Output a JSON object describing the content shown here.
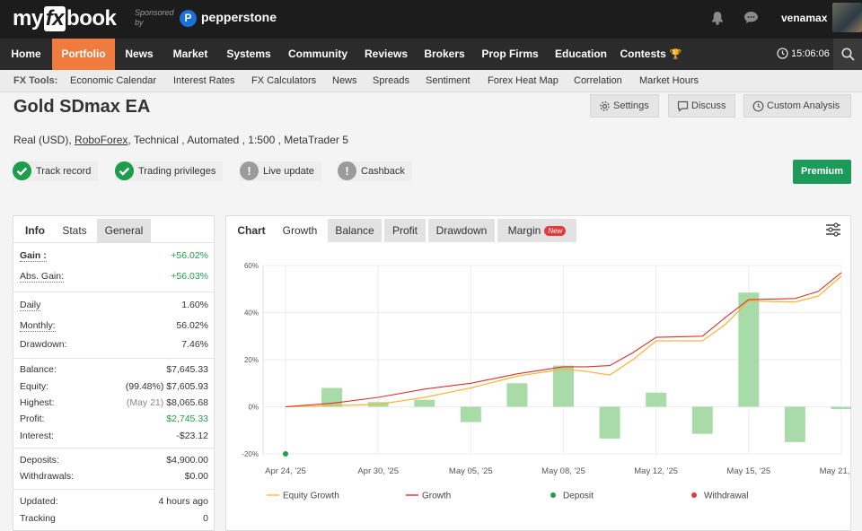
{
  "header": {
    "logo_text": {
      "pre": "my",
      "fx": "fx",
      "post": "book"
    },
    "sponsored_text": "Sponsored by",
    "sponsor_logo_letter": "P",
    "sponsor_name": "pepperstone",
    "username": "venamax"
  },
  "nav": {
    "items": [
      "Home",
      "Portfolio",
      "News",
      "Market",
      "Systems",
      "Community",
      "Reviews",
      "Brokers",
      "Prop Firms",
      "Education",
      "Contests"
    ],
    "active": "Portfolio",
    "time": "15:06:06"
  },
  "tools": {
    "label": "FX Tools:",
    "items": [
      "Economic Calendar",
      "Interest Rates",
      "FX Calculators",
      "News",
      "Spreads",
      "Sentiment",
      "Forex Heat Map",
      "Correlation",
      "Market Hours"
    ]
  },
  "page": {
    "title": "Gold SDmax EA",
    "settings_label": "Settings",
    "discuss_label": "Discuss",
    "custom_analysis_label": "Custom Analysis",
    "subtitle_prefix": "Real (USD),",
    "broker_link": "RoboForex",
    "subtitle_suffix": ", Technical , Automated , 1:500 , MetaTrader 5",
    "badges": [
      "Track record",
      "Trading privileges",
      "Live update",
      "Cashback"
    ],
    "premium_label": "Premium"
  },
  "stats": {
    "tabs": [
      "Info",
      "Stats",
      "General"
    ],
    "gain_label": "Gain :",
    "gain_value": "+56.02%",
    "abs_gain_label": "Abs. Gain:",
    "abs_gain_value": "+56.03%",
    "daily_label": "Daily",
    "daily_value": "1.60%",
    "monthly_label": "Monthly:",
    "monthly_value": "56.02%",
    "drawdown_label": "Drawdown:",
    "drawdown_value": "7.46%",
    "balance_label": "Balance:",
    "balance_value": "$7,645.33",
    "equity_label": "Equity:",
    "equity_note": "(99.48%)",
    "equity_value": "$7,605.93",
    "highest_label": "Highest:",
    "highest_note": "(May 21)",
    "highest_value": "$8,065.68",
    "profit_label": "Profit:",
    "profit_value": "$2,745.33",
    "interest_label": "Interest:",
    "interest_value": "-$23.12",
    "deposits_label": "Deposits:",
    "deposits_value": "$4,900.00",
    "withdrawals_label": "Withdrawals:",
    "withdrawals_value": "$0.00",
    "updated_label": "Updated:",
    "updated_value": "4 hours ago",
    "tracking_label": "Tracking",
    "tracking_value": "0"
  },
  "chart_tabs": {
    "label": "Chart",
    "items": [
      "Growth",
      "Balance",
      "Profit",
      "Drawdown",
      "Margin"
    ],
    "new_badge": "New"
  },
  "colors": {
    "equity": "#f6b73c",
    "growth": "#d9322a",
    "bars": "#a8dba8",
    "deposit": "#1e9e4b",
    "withdrawal": "#e03a3a",
    "accent": "#f07b3f",
    "premium": "#1c9a5a"
  },
  "chart_data": {
    "type": "bar+line",
    "ylim": [
      -20,
      60
    ],
    "yticks": [
      "-20%",
      "0%",
      "20%",
      "40%",
      "60%"
    ],
    "yticks_values": [
      -20,
      0,
      20,
      40,
      60
    ],
    "xtick_labels": [
      "Apr 24, '25",
      "Apr 30, '25",
      "May 05, '25",
      "May 08, '25",
      "May 12, '25",
      "May 15, '25",
      "May 21, '25"
    ],
    "xtick_positions": [
      0,
      2,
      4,
      6,
      8,
      10,
      12
    ],
    "bar_x": [
      1,
      2,
      3,
      4,
      5,
      6,
      7,
      8,
      9,
      10,
      11,
      12
    ],
    "bar_values": [
      8,
      2,
      3,
      -6.5,
      10,
      17.5,
      -13.5,
      6,
      -11.5,
      48.5,
      -15,
      -1
    ],
    "series": [
      {
        "name": "Equity Growth",
        "x": [
          0,
          1,
          2,
          3,
          4,
          5,
          6,
          6.5,
          7,
          7.5,
          8,
          9,
          9.5,
          10,
          11,
          11.5,
          12
        ],
        "y": [
          0,
          0.5,
          1,
          4,
          8,
          13,
          16,
          15,
          13.5,
          20,
          28,
          28,
          35,
          45,
          44.5,
          47,
          55.5
        ]
      },
      {
        "name": "Growth",
        "x": [
          0,
          1,
          2,
          3,
          4,
          5,
          6,
          6.5,
          7,
          7.5,
          8,
          9,
          9.5,
          10,
          11,
          11.5,
          12
        ],
        "y": [
          0,
          1.5,
          4,
          7.5,
          10,
          14,
          17,
          17,
          17.5,
          23,
          29.5,
          30,
          38,
          45.5,
          46,
          49,
          57
        ]
      }
    ],
    "markers": [
      {
        "name": "Deposit",
        "x": 0,
        "y": -20
      }
    ],
    "legend": [
      "Equity Growth",
      "Growth",
      "Deposit",
      "Withdrawal"
    ],
    "legend_position": "bottom",
    "grid": true
  }
}
